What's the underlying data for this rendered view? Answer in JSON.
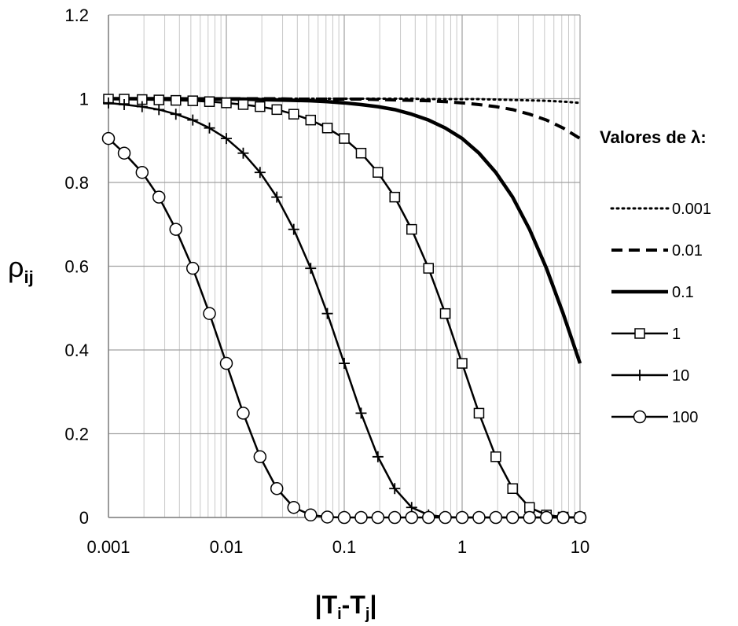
{
  "chart_data": {
    "type": "line",
    "title": "",
    "xlabel": "|Ti-Tj|",
    "xlabel_parts": {
      "open": "|T",
      "sub_i": "i",
      "dash": "-T",
      "sub_j": "j",
      "close": "|"
    },
    "ylabel": "ρij",
    "ylabel_parts": {
      "main": "ρ",
      "sub": "ij"
    },
    "x_scale": "log",
    "xlim": [
      0.001,
      10
    ],
    "ylim": [
      0,
      1.2
    ],
    "x_ticks": [
      "0.001",
      "0.01",
      "0.1",
      "1",
      "10"
    ],
    "y_ticks": [
      "0",
      "0.2",
      "0.4",
      "0.6",
      "0.8",
      "1",
      "1.2"
    ],
    "grid": true,
    "legend_title": "Valores de λ:",
    "legend_position": "right",
    "x": [
      0.001,
      0.00136,
      0.00193,
      0.00268,
      0.00373,
      0.00519,
      0.00719,
      0.01,
      0.0139,
      0.0193,
      0.0268,
      0.0373,
      0.0519,
      0.0719,
      0.1,
      0.139,
      0.193,
      0.268,
      0.373,
      0.519,
      0.719,
      1,
      1.39,
      1.93,
      2.68,
      3.73,
      5.19,
      7.19,
      10
    ],
    "series": [
      {
        "name": "0.001",
        "style": "dotted",
        "marker": "none",
        "values": [
          1.0,
          1.0,
          1.0,
          1.0,
          1.0,
          1.0,
          1.0,
          1.0,
          1.0,
          1.0,
          1.0,
          1.0,
          1.0,
          1.0,
          1.0,
          1.0,
          1.0,
          1.0,
          1.0,
          0.999,
          0.999,
          0.999,
          0.999,
          0.998,
          0.997,
          0.996,
          0.995,
          0.993,
          0.99
        ]
      },
      {
        "name": "0.01",
        "style": "dashed",
        "marker": "none",
        "values": [
          1.0,
          1.0,
          1.0,
          1.0,
          1.0,
          1.0,
          1.0,
          1.0,
          1.0,
          1.0,
          1.0,
          0.999,
          0.999,
          0.999,
          0.999,
          0.999,
          0.998,
          0.997,
          0.996,
          0.995,
          0.993,
          0.99,
          0.986,
          0.981,
          0.974,
          0.963,
          0.949,
          0.93,
          0.905
        ]
      },
      {
        "name": "0.1",
        "style": "solid-thick",
        "marker": "none",
        "values": [
          1.0,
          1.0,
          1.0,
          1.0,
          1.0,
          0.999,
          0.999,
          0.999,
          0.999,
          0.998,
          0.997,
          0.996,
          0.995,
          0.993,
          0.99,
          0.986,
          0.981,
          0.974,
          0.963,
          0.949,
          0.93,
          0.905,
          0.87,
          0.824,
          0.765,
          0.688,
          0.595,
          0.487,
          0.368
        ]
      },
      {
        "name": "1",
        "style": "solid",
        "marker": "square",
        "values": [
          0.999,
          0.999,
          0.998,
          0.997,
          0.996,
          0.995,
          0.993,
          0.99,
          0.986,
          0.981,
          0.974,
          0.963,
          0.949,
          0.93,
          0.905,
          0.87,
          0.824,
          0.765,
          0.688,
          0.595,
          0.487,
          0.368,
          0.249,
          0.145,
          0.069,
          0.024,
          0.006,
          0.001,
          0.0
        ]
      },
      {
        "name": "10",
        "style": "solid",
        "marker": "plus",
        "values": [
          0.99,
          0.986,
          0.981,
          0.974,
          0.963,
          0.949,
          0.93,
          0.905,
          0.87,
          0.824,
          0.765,
          0.688,
          0.595,
          0.487,
          0.368,
          0.249,
          0.145,
          0.069,
          0.024,
          0.006,
          0.001,
          0.0,
          0.0,
          0.0,
          0.0,
          0.0,
          0.0,
          0.0,
          0.0
        ]
      },
      {
        "name": "100",
        "style": "solid",
        "marker": "circle",
        "values": [
          0.905,
          0.87,
          0.824,
          0.765,
          0.688,
          0.595,
          0.487,
          0.368,
          0.249,
          0.145,
          0.069,
          0.024,
          0.006,
          0.001,
          0.0,
          0.0,
          0.0,
          0.0,
          0.0,
          0.0,
          0.0,
          0.0,
          0.0,
          0.0,
          0.0,
          0.0,
          0.0,
          0.0,
          0.0
        ]
      }
    ]
  }
}
